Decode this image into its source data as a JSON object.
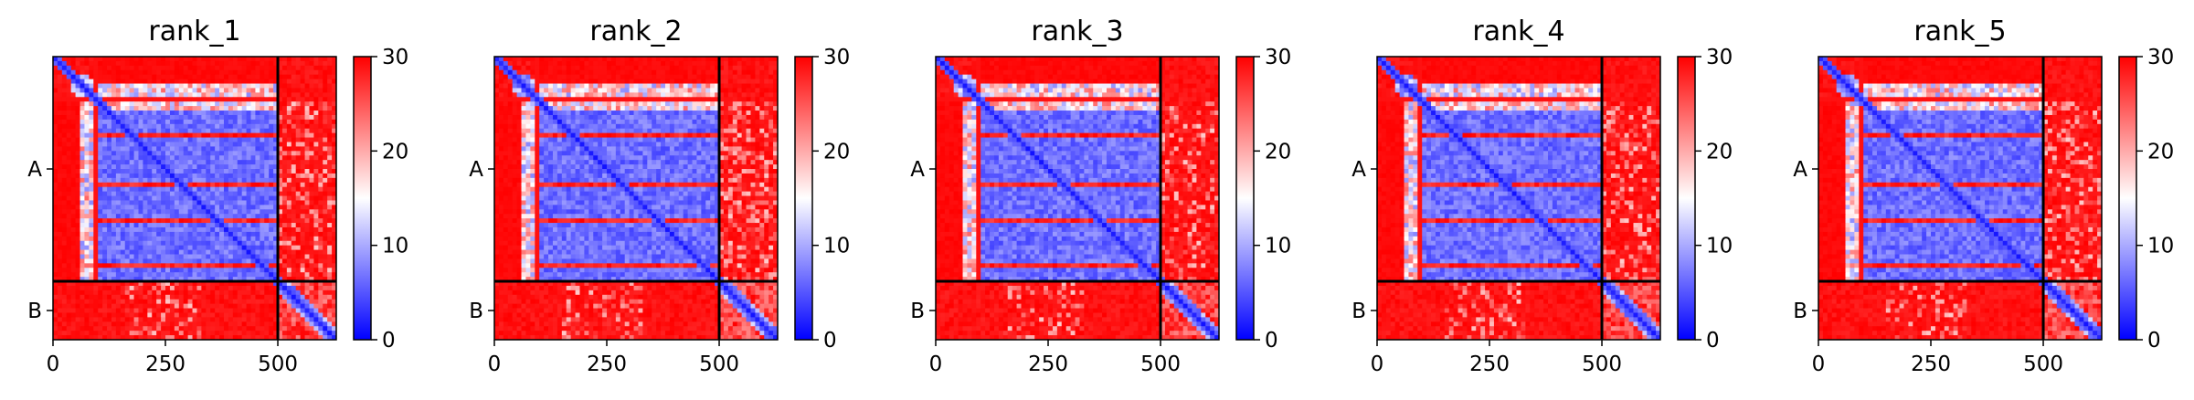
{
  "chart_data": {
    "type": "heatmap",
    "description": "Predicted aligned error (PAE) matrices for five ranked models; two chains A and B with a boundary near residue 500",
    "sequence_length": 630,
    "chain_boundary": 500,
    "chains": [
      {
        "name": "A",
        "start": 0,
        "end": 500
      },
      {
        "name": "B",
        "start": 500,
        "end": 630
      }
    ],
    "x_ticks": [
      0,
      250,
      500
    ],
    "x_tick_labels": [
      "0",
      "250",
      "500"
    ],
    "y_tick_labels": [
      "A",
      "B"
    ],
    "colorbar": {
      "min": 0,
      "max": 30,
      "ticks": [
        0,
        10,
        20,
        30
      ],
      "tick_labels": [
        "0",
        "10",
        "20",
        "30"
      ],
      "colormap": "bwr",
      "low_color": "#0000ff",
      "mid_color": "#ffffff",
      "high_color": "#ff0000"
    },
    "panels": [
      {
        "title": "rank_1"
      },
      {
        "title": "rank_2"
      },
      {
        "title": "rank_3"
      },
      {
        "title": "rank_4"
      },
      {
        "title": "rank_5"
      }
    ]
  }
}
